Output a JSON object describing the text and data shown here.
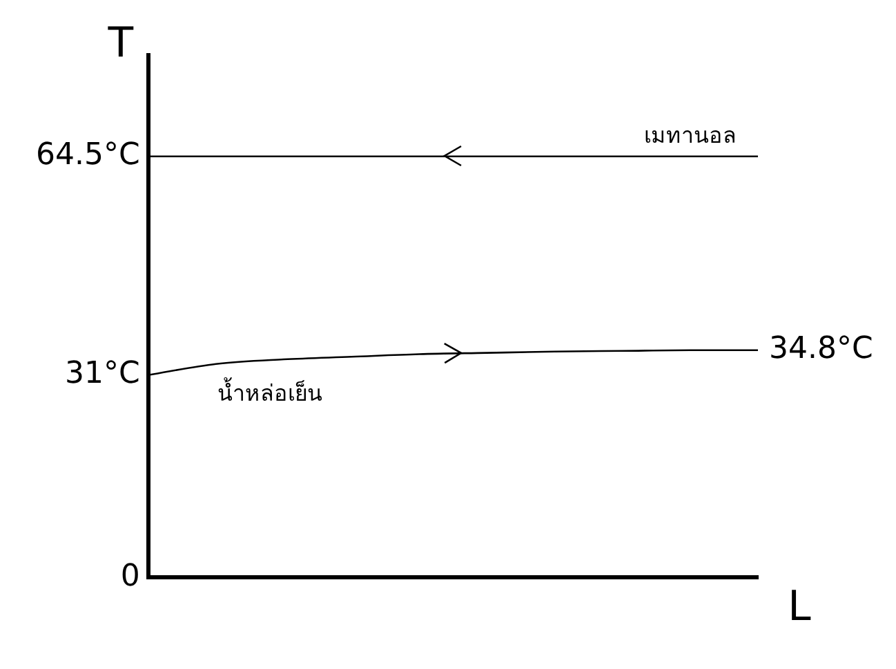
{
  "chart_data": {
    "type": "line",
    "xlabel": "L",
    "ylabel": "T",
    "categories": [
      null,
      null,
      null,
      null,
      null,
      null,
      null,
      null,
      null,
      null
    ],
    "series": [
      {
        "name": "เมทานอล",
        "color": "#000000",
        "values": [
          64.5,
          64.5,
          64.5,
          64.5,
          64.5,
          64.5,
          64.5,
          64.5,
          64.5,
          64.5
        ]
      },
      {
        "name": "น้ำหล่อเย็น",
        "color": "#000000",
        "values": [
          31,
          32.7,
          33.4,
          33.8,
          34.2,
          34.4,
          34.6,
          34.7,
          34.8,
          34.8
        ],
        "value_labels": [
          null,
          null,
          null,
          null,
          null,
          null,
          null,
          null,
          null,
          "34.8°C"
        ]
      }
    ],
    "ylim": [
      0,
      80
    ],
    "yticks": [
      0,
      {
        "value": 31,
        "label": "31°C"
      },
      {
        "value": 64.5,
        "label": "64.5°C"
      }
    ],
    "grid": false,
    "legend": false,
    "marker": "none",
    "line_style": "solid"
  }
}
